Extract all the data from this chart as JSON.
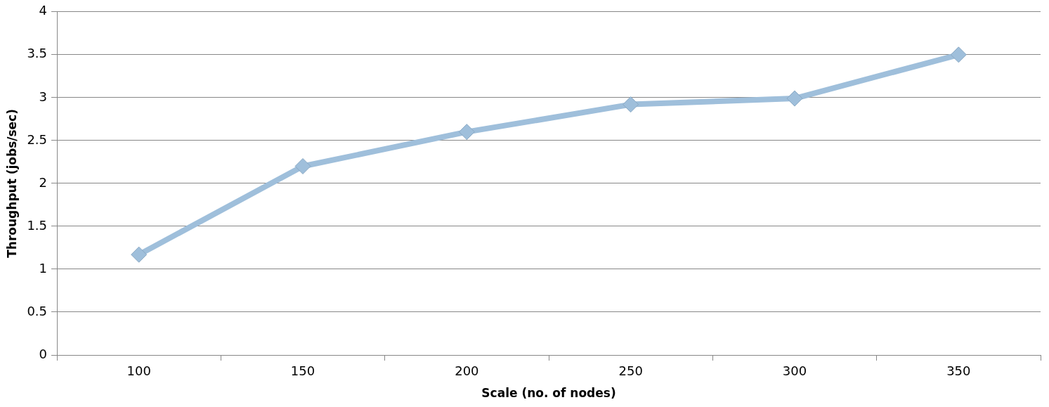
{
  "chart_data": {
    "type": "line",
    "xlabel": "Scale (no. of nodes)",
    "ylabel": "Throughput (jobs/sec)",
    "categories": [
      "100",
      "150",
      "200",
      "250",
      "300",
      "350"
    ],
    "series": [
      {
        "color": "#9fbfdb",
        "values": [
          1.17,
          2.2,
          2.6,
          2.92,
          2.99,
          3.5
        ]
      }
    ],
    "ylim": [
      0,
      4
    ],
    "yticks": [
      0,
      0.5,
      1,
      1.5,
      2,
      2.5,
      3,
      3.5,
      4
    ],
    "grid": "y",
    "legend": false,
    "marker": "diamond",
    "line_style": "solid"
  }
}
